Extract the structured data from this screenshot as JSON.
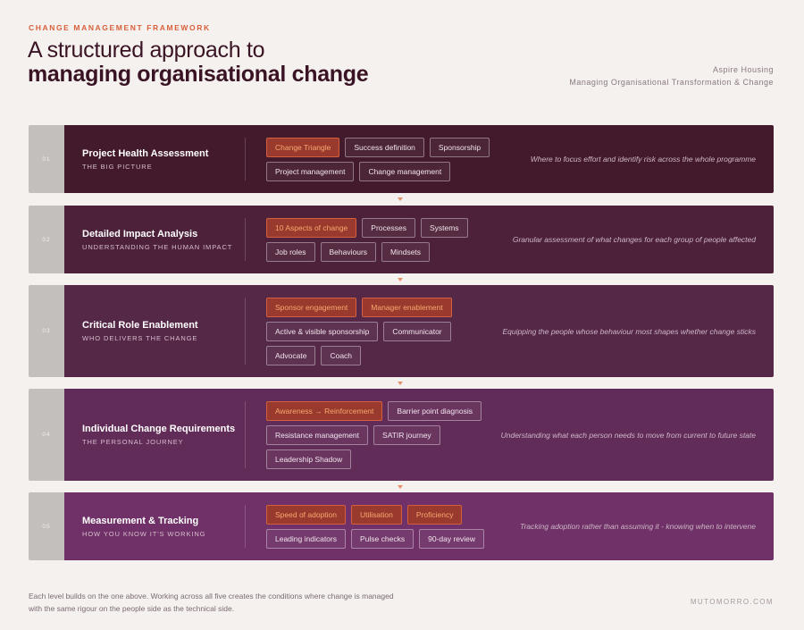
{
  "header": {
    "eyebrow": "CHANGE MANAGEMENT FRAMEWORK",
    "title_light": "A structured approach to",
    "title_bold": "managing organisational change",
    "org": "Aspire Housing",
    "subtitle": "Managing Organisational Transformation & Change"
  },
  "levels": [
    {
      "num": "01",
      "name": "Project Health Assessment",
      "sub": "THE BIG PICTURE",
      "color": "#431a2c",
      "chips": [
        {
          "label": "Change Triangle",
          "highlight": true
        },
        {
          "label": "Success definition",
          "highlight": false
        },
        {
          "label": "Sponsorship",
          "highlight": false
        },
        {
          "label": "Project management",
          "highlight": false
        },
        {
          "label": "Change management",
          "highlight": false
        }
      ],
      "desc": "Where to focus effort and identify risk across the whole programme"
    },
    {
      "num": "02",
      "name": "Detailed Impact Analysis",
      "sub": "UNDERSTANDING THE HUMAN IMPACT",
      "color": "#4d2139",
      "chips": [
        {
          "label": "10 Aspects of change",
          "highlight": true
        },
        {
          "label": "Processes",
          "highlight": false
        },
        {
          "label": "Systems",
          "highlight": false
        },
        {
          "label": "Job roles",
          "highlight": false
        },
        {
          "label": "Behaviours",
          "highlight": false
        },
        {
          "label": "Mindsets",
          "highlight": false
        }
      ],
      "desc": "Granular assessment of what changes for each group of people affected"
    },
    {
      "num": "03",
      "name": "Critical Role Enablement",
      "sub": "WHO DELIVERS THE CHANGE",
      "color": "#562848",
      "chips": [
        {
          "label": "Sponsor engagement",
          "highlight": true
        },
        {
          "label": "Manager enablement",
          "highlight": true
        },
        {
          "label": "Active & visible sponsorship",
          "highlight": false
        },
        {
          "label": "Communicator",
          "highlight": false
        },
        {
          "label": "Advocate",
          "highlight": false
        },
        {
          "label": "Coach",
          "highlight": false
        }
      ],
      "desc": "Equipping the people whose behaviour most shapes whether change sticks"
    },
    {
      "num": "04",
      "name": "Individual Change Requirements",
      "sub": "THE PERSONAL JOURNEY",
      "color": "#622c58",
      "chips": [
        {
          "label": "Awareness → Reinforcement",
          "highlight": true
        },
        {
          "label": "Barrier point diagnosis",
          "highlight": false
        },
        {
          "label": "Resistance management",
          "highlight": false
        },
        {
          "label": "SATIR journey",
          "highlight": false
        },
        {
          "label": "Leadership Shadow",
          "highlight": false
        }
      ],
      "desc": "Understanding what each person needs to move from current to future state"
    },
    {
      "num": "05",
      "name": "Measurement & Tracking",
      "sub": "HOW YOU KNOW IT'S WORKING",
      "color": "#6f3167",
      "chips": [
        {
          "label": "Speed of adoption",
          "highlight": true
        },
        {
          "label": "Utilisation",
          "highlight": true
        },
        {
          "label": "Proficiency",
          "highlight": true
        },
        {
          "label": "Leading indicators",
          "highlight": false
        },
        {
          "label": "Pulse checks",
          "highlight": false
        },
        {
          "label": "90-day review",
          "highlight": false
        }
      ],
      "desc": "Tracking adoption rather than assuming it - knowing when to intervene"
    }
  ],
  "footer": {
    "note": "Each level builds on the one above. Working across all five creates the conditions where change is managed with the same rigour on the people side as the technical side.",
    "brand": "MUTOMORRO.COM"
  }
}
